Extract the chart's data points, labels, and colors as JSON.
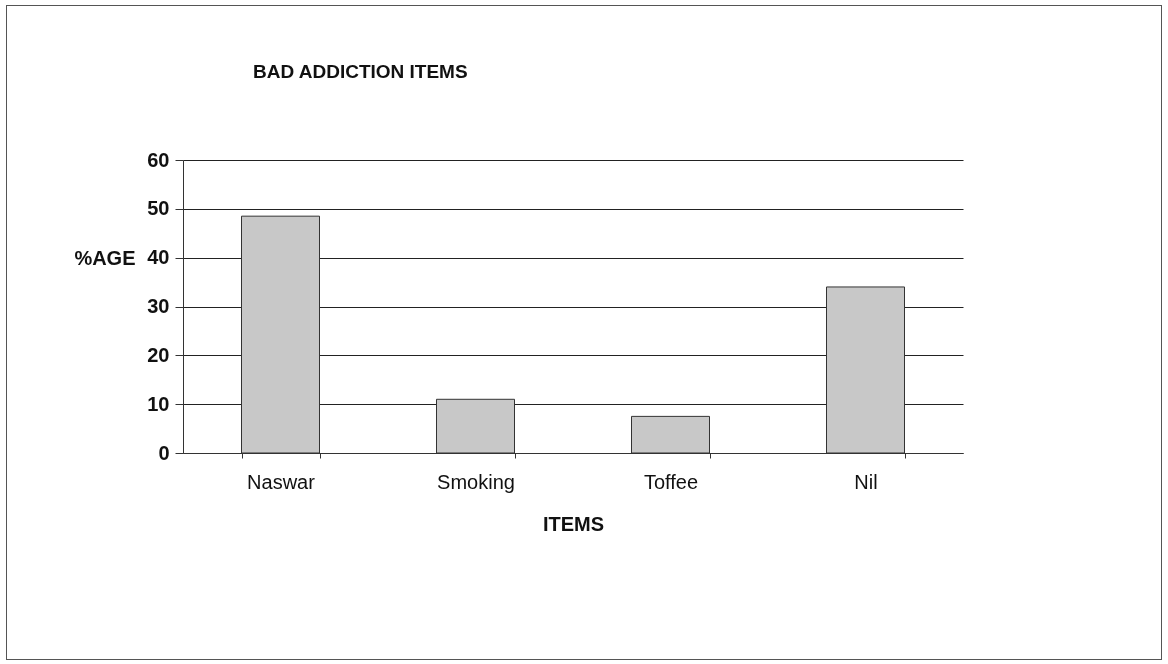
{
  "chart_data": {
    "type": "bar",
    "title": "BAD ADDICTION ITEMS",
    "xlabel": "ITEMS",
    "ylabel": "%AGE",
    "categories": [
      "Naswar",
      "Smoking",
      "Toffee",
      "Nil"
    ],
    "values": [
      48.5,
      11,
      7.5,
      34
    ],
    "color": "#c8c8c8",
    "ylim": [
      0,
      60
    ],
    "yticks": [
      0,
      10,
      20,
      30,
      40,
      50,
      60
    ],
    "grid": "y"
  }
}
